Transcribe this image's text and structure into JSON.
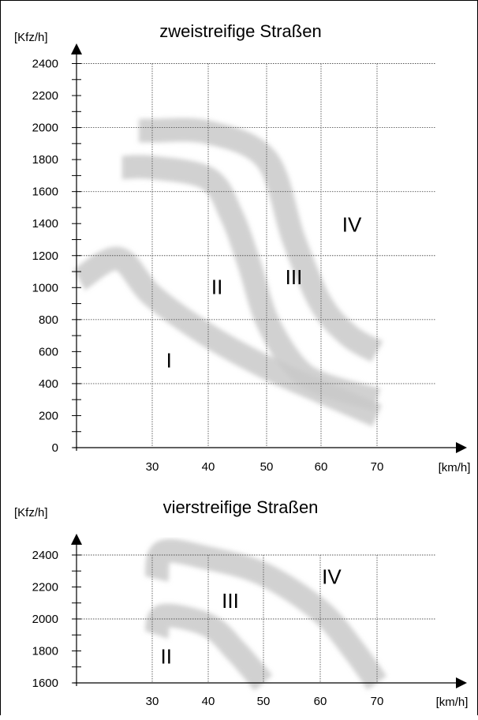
{
  "chart_data": [
    {
      "type": "area",
      "title": "zweistreifige Straßen",
      "ylabel": "[Kfz/h]",
      "xlabel": "[km/h]",
      "y_ticks": [
        "0",
        "200",
        "400",
        "600",
        "800",
        "1000",
        "1200",
        "1400",
        "1600",
        "1800",
        "2000",
        "2200",
        "2400"
      ],
      "x_ticks": [
        "30",
        "40",
        "50",
        "60",
        "70"
      ],
      "ylim": [
        0,
        2400
      ],
      "xlim": [
        30,
        70
      ],
      "grid": true,
      "bands": [
        {
          "name": "I",
          "x": [
            17,
            24,
            30,
            40,
            50,
            60,
            70
          ],
          "y": [
            1050,
            1180,
            950,
            700,
            500,
            350,
            200
          ]
        },
        {
          "name": "II",
          "x": [
            24.6,
            30,
            40,
            44,
            47,
            50,
            55,
            60,
            70
          ],
          "y": [
            1750,
            1750,
            1680,
            1450,
            1150,
            800,
            520,
            400,
            300
          ]
        },
        {
          "name": "III",
          "x": [
            27.6,
            30,
            40,
            50,
            55,
            60,
            65,
            70
          ],
          "y": [
            1980,
            1980,
            1970,
            1800,
            1300,
            900,
            700,
            600
          ]
        }
      ],
      "zone_labels": [
        {
          "text": "I",
          "x": 33,
          "y": 500
        },
        {
          "text": "II",
          "x": 41.5,
          "y": 960
        },
        {
          "text": "III",
          "x": 55,
          "y": 1020
        },
        {
          "text": "IV",
          "x": 65.5,
          "y": 1350
        }
      ]
    },
    {
      "type": "area",
      "title": "vierstreifige Straßen",
      "ylabel": "[Kfz/h]",
      "xlabel": "[km/h]",
      "y_ticks": [
        "1600",
        "1800",
        "2000",
        "2200",
        "2400"
      ],
      "x_ticks": [
        "30",
        "40",
        "50",
        "60",
        "70"
      ],
      "ylim": [
        1600,
        2400
      ],
      "xlim": [
        30,
        70
      ],
      "grid": true,
      "bands": [
        {
          "name": "II",
          "x": [
            30.8,
            32,
            40,
            45,
            50
          ],
          "y": [
            1900,
            2020,
            1960,
            1800,
            1600
          ]
        },
        {
          "name": "III",
          "x": [
            30.8,
            32,
            40,
            50,
            60,
            66,
            70
          ],
          "y": [
            2250,
            2420,
            2380,
            2280,
            2050,
            1800,
            1600
          ]
        }
      ],
      "zone_labels": [
        {
          "text": "II",
          "x": 32.5,
          "y": 1720
        },
        {
          "text": "III",
          "x": 44,
          "y": 2070
        },
        {
          "text": "IV",
          "x": 62,
          "y": 2220
        }
      ]
    }
  ]
}
